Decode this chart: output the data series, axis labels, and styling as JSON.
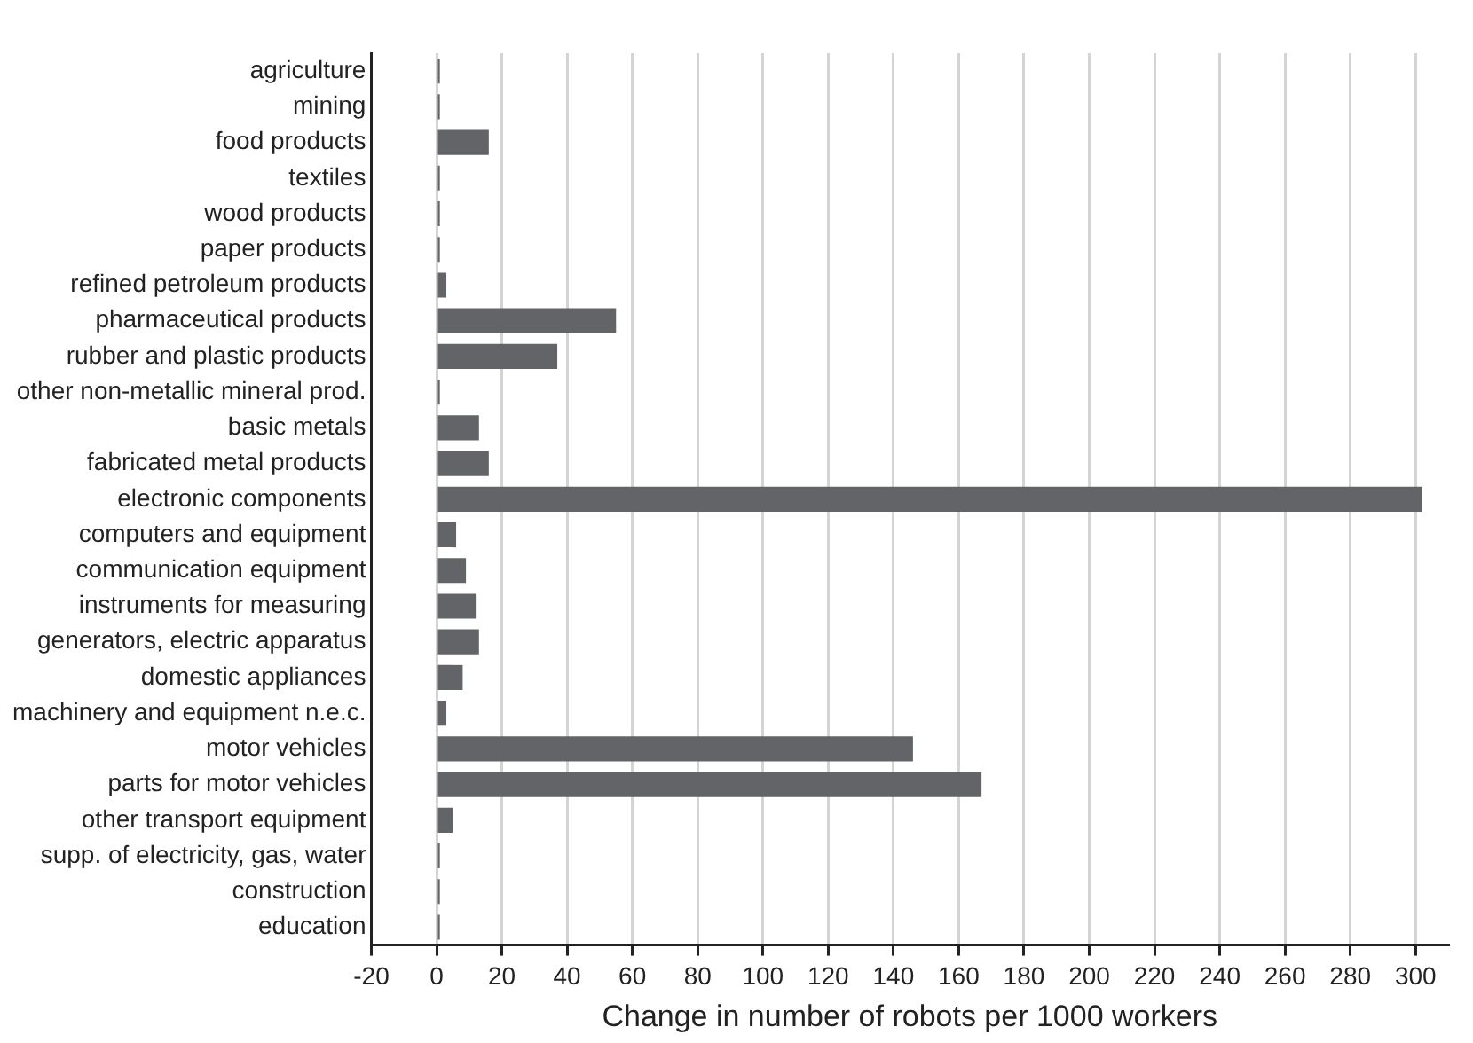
{
  "chart_data": {
    "type": "bar",
    "orientation": "horizontal",
    "xlabel": "Change in number of robots per 1000 workers",
    "categories": [
      "agriculture",
      "mining",
      "food products",
      "textiles",
      "wood products",
      "paper products",
      "refined petroleum products",
      "pharmaceutical products",
      "rubber and plastic products",
      "other non-metallic mineral prod.",
      "basic metals",
      "fabricated metal products",
      "electronic components",
      "computers and equipment",
      "communication equipment",
      "instruments for measuring",
      "generators, electric apparatus",
      "domestic appliances",
      "machinery and equipment n.e.c.",
      "motor vehicles",
      "parts for motor vehicles",
      "other transport equipment",
      "supp. of electricity, gas, water",
      "construction",
      "education"
    ],
    "values": [
      1,
      1,
      16,
      1,
      1,
      1,
      3,
      55,
      37,
      1,
      13,
      16,
      302,
      6,
      9,
      12,
      13,
      8,
      3,
      146,
      167,
      5,
      1,
      1,
      1
    ],
    "color": "#636467",
    "xlim": [
      -20,
      310
    ],
    "xticks": [
      -20,
      0,
      20,
      40,
      60,
      80,
      100,
      120,
      140,
      160,
      180,
      200,
      220,
      240,
      260,
      280,
      300
    ],
    "grid": "x"
  }
}
